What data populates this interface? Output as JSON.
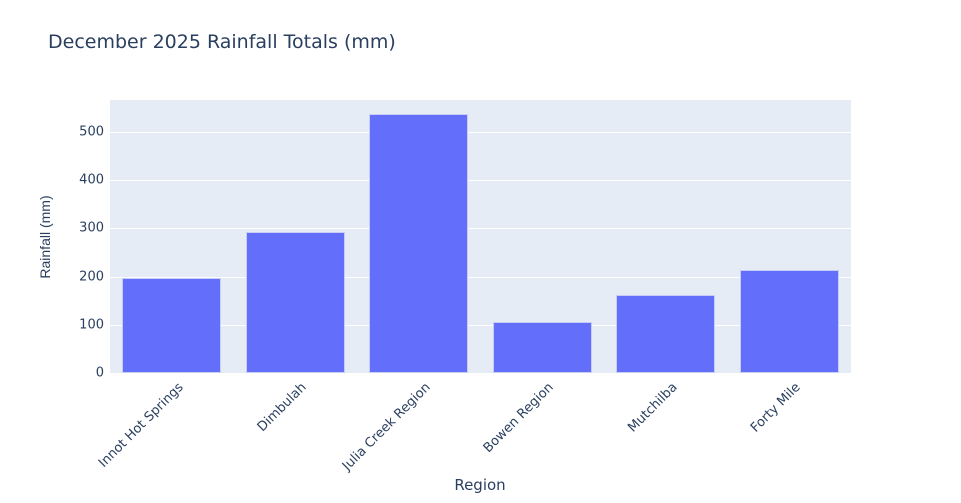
{
  "chart_data": {
    "type": "bar",
    "title": "December 2025 Rainfall Totals (mm)",
    "xlabel": "Region",
    "ylabel": "Rainfall (mm)",
    "categories": [
      "Innot Hot Springs",
      "Dimbulah",
      "Julia Creek Region",
      "Bowen Region",
      "Mutchilba",
      "Forty Mile"
    ],
    "values": [
      197,
      293,
      537,
      105,
      162,
      213
    ],
    "ylim": [
      0,
      566
    ],
    "yticks": [
      0,
      100,
      200,
      300,
      400,
      500
    ],
    "grid": true,
    "legend": "none",
    "bar_color": "#636efa",
    "plot_bg": "#e5ecf6"
  },
  "labels": {
    "title": "December 2025 Rainfall Totals (mm)",
    "xlabel": "Region",
    "ylabel": "Rainfall (mm)",
    "yticks": [
      "0",
      "100",
      "200",
      "300",
      "400",
      "500"
    ],
    "categories": [
      "Innot Hot Springs",
      "Dimbulah",
      "Julia Creek Region",
      "Bowen Region",
      "Mutchilba",
      "Forty Mile"
    ]
  }
}
